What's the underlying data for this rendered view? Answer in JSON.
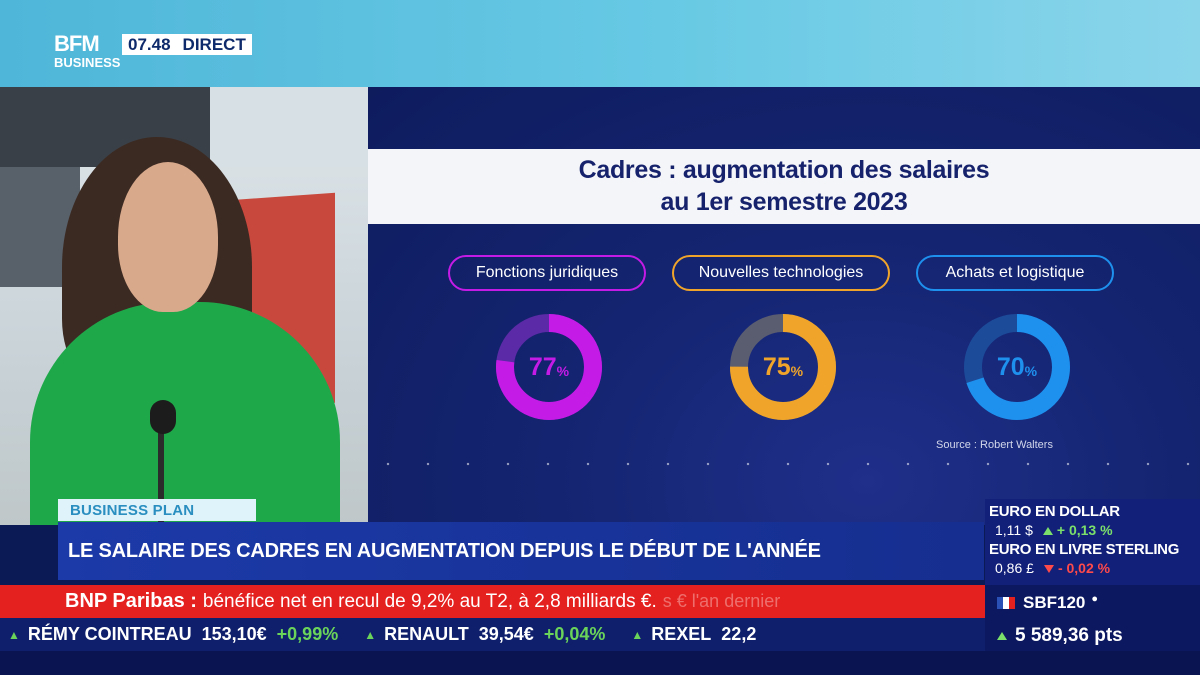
{
  "channel": {
    "logo_line1": "BFM",
    "logo_line2": "BUSINESS",
    "time": "07.48",
    "live_label": "DIRECT"
  },
  "graphic": {
    "title_line1": "Cadres : augmentation des salaires",
    "title_line2": "au 1er semestre 2023",
    "categories": [
      {
        "label": "Fonctions juridiques",
        "value": 77,
        "unit": "%",
        "color": "#c51be6"
      },
      {
        "label": "Nouvelles technologies",
        "value": 75,
        "unit": "%",
        "color": "#f0a52a"
      },
      {
        "label": "Achats et logistique",
        "value": 70,
        "unit": "%",
        "color": "#1e90ee"
      }
    ],
    "source": "Source : Robert Walters"
  },
  "lower_third": {
    "tag": "BUSINESS PLAN",
    "headline": "LE SALAIRE DES CADRES EN AUGMENTATION DEPUIS LE DÉBUT DE L'ANNÉE"
  },
  "news_ticker": {
    "bold": "BNP Paribas :",
    "text": "bénéfice net en recul de 9,2% au T2, à 2,8 milliards €.",
    "ghost": "s € l'an dernier"
  },
  "market_ticker": [
    {
      "name": "RÉMY COINTREAU",
      "price": "153,10€",
      "change": "+0,99%"
    },
    {
      "name": "RENAULT",
      "price": "39,54€",
      "change": "+0,04%"
    },
    {
      "name": "REXEL",
      "price": "22,2",
      "change": ""
    }
  ],
  "fx": [
    {
      "label": "EURO EN DOLLAR",
      "value": "1,11 $",
      "change": "+ 0,13 %",
      "direction": "up"
    },
    {
      "label": "EURO EN LIVRE STERLING",
      "value": "0,86 £",
      "change": "- 0,02 %",
      "direction": "down"
    }
  ],
  "index": {
    "name": "SBF120",
    "value": "5 589,36 pts"
  }
}
